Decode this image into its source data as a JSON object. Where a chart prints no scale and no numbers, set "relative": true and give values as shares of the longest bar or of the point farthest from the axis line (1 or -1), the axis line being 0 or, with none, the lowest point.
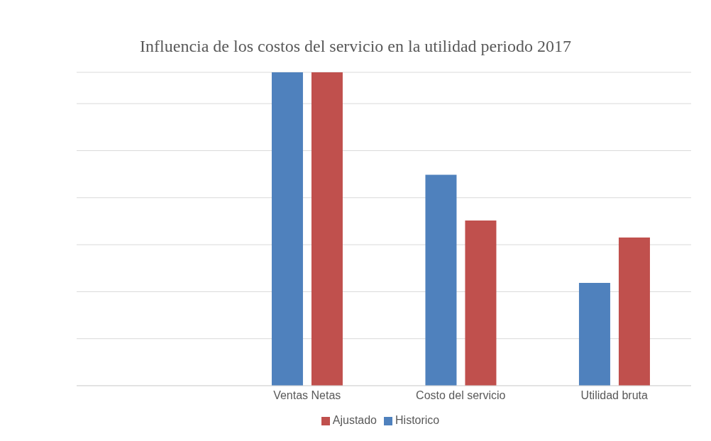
{
  "chart_data": {
    "type": "bar",
    "title": "Influencia de los costos del servicio en la utilidad periodo 2017",
    "relative": true,
    "categories": [
      null,
      "Ventas Netas",
      "Costo del servicio",
      "Utilidad bruta"
    ],
    "series": [
      {
        "name": "Historico",
        "color": "#4f81bd",
        "values": [
          null,
          1,
          0.673,
          0.328
        ]
      },
      {
        "name": "Ajustado",
        "color": "#c0504d",
        "values": [
          null,
          1,
          0.527,
          0.473
        ]
      }
    ],
    "grid": "y",
    "legend": "bottom"
  }
}
